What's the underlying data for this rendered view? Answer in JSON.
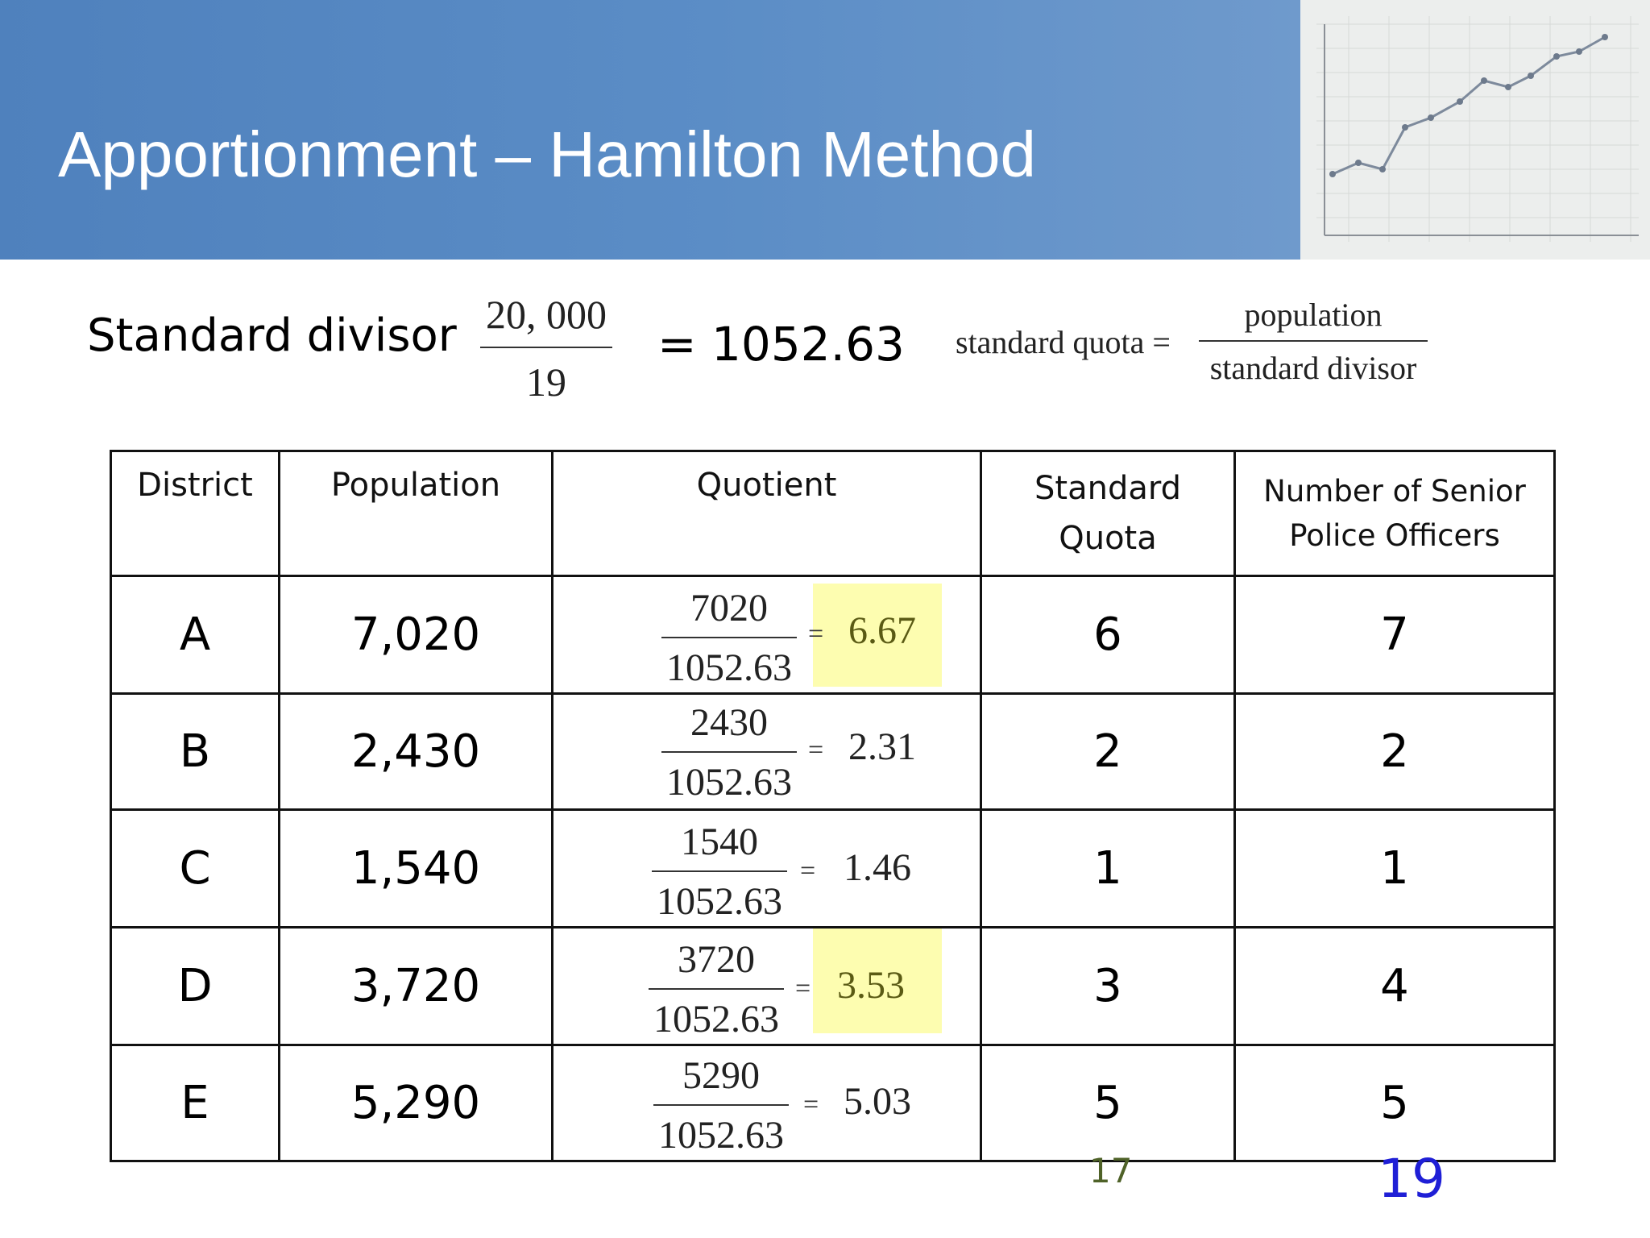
{
  "slide": {
    "title": "Apportionment – Hamilton Method"
  },
  "divisor": {
    "label": "Standard divisor",
    "numerator": "20, 000",
    "denominator": "19",
    "result": "= 1052.63"
  },
  "formula": {
    "lhs": "standard quota =",
    "numerator": "population",
    "denominator": "standard divisor"
  },
  "table": {
    "headers": {
      "district": "District",
      "population": "Population",
      "quotient": "Quotient",
      "quota_line1": "Standard",
      "quota_line2": "Quota",
      "officers_line1": "Number of Senior",
      "officers_line2": "Police Officers"
    },
    "rows": [
      {
        "district": "A",
        "population": "7,020",
        "q_num": "7020",
        "q_den": "1052.63",
        "eq": "=",
        "q_res": "6.67",
        "quota": "6",
        "officers": "7"
      },
      {
        "district": "B",
        "population": "2,430",
        "q_num": "2430",
        "q_den": "1052.63",
        "eq": "=",
        "q_res": "2.31",
        "quota": "2",
        "officers": "2"
      },
      {
        "district": "C",
        "population": "1,540",
        "q_num": "1540",
        "q_den": "1052.63",
        "eq": "=",
        "q_res": "1.46",
        "quota": "1",
        "officers": "1"
      },
      {
        "district": "D",
        "population": "3,720",
        "q_num": "3720",
        "q_den": "1052.63",
        "eq": "=",
        "q_res": "3.53",
        "quota": "3",
        "officers": "4"
      },
      {
        "district": "E",
        "population": "5,290",
        "q_num": "5290",
        "q_den": "1052.63",
        "eq": "=",
        "q_res": "5.03",
        "quota": "5",
        "officers": "5"
      }
    ]
  },
  "totals": {
    "quota_sum": "17",
    "officers_sum": "19"
  },
  "colors": {
    "header_blue": "#4f81bd",
    "highlight": "#fdfdb0",
    "total_officers": "#1f1fd6",
    "total_quota": "#4f6228"
  }
}
